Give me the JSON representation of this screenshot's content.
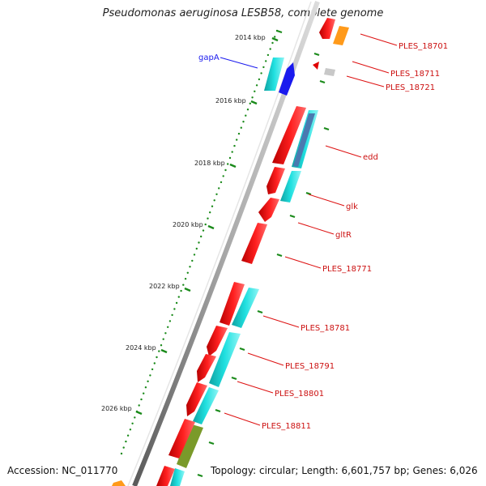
{
  "title": "Pseudomonas aeruginosa LESB58, complete genome",
  "footer": {
    "accession": "Accession: NC_011770",
    "summary": "Topology: circular; Length: 6,601,757 bp; Genes: 6,026"
  },
  "ticks": [
    "2014 kbp",
    "2016 kbp",
    "2018 kbp",
    "2020 kbp",
    "2022 kbp",
    "2024 kbp",
    "2026 kbp"
  ],
  "genes": [
    {
      "name": "gapA",
      "color": "#1a1aee"
    },
    {
      "name": "PLES_18701",
      "color": "#cc1111"
    },
    {
      "name": "PLES_18711",
      "color": "#cc1111"
    },
    {
      "name": "PLES_18721",
      "color": "#cc1111"
    },
    {
      "name": "edd",
      "color": "#cc1111"
    },
    {
      "name": "glk",
      "color": "#cc1111"
    },
    {
      "name": "gltR",
      "color": "#cc1111"
    },
    {
      "name": "PLES_18771",
      "color": "#cc1111"
    },
    {
      "name": "PLES_18781",
      "color": "#cc1111"
    },
    {
      "name": "PLES_18791",
      "color": "#cc1111"
    },
    {
      "name": "PLES_18801",
      "color": "#cc1111"
    },
    {
      "name": "PLES_18811",
      "color": "#cc1111"
    }
  ],
  "colors": {
    "forward_strand": "#ff1a1a",
    "reverse_strand": "#19d5d5",
    "backbone": "#8a8a8a",
    "tick_marks": "#1a8a1a",
    "orange_feature": "#ff9a1a",
    "olive_feature": "#7a9a2a",
    "slate_feature": "#4a7ab0",
    "gapA_feature": "#1a1aee"
  }
}
